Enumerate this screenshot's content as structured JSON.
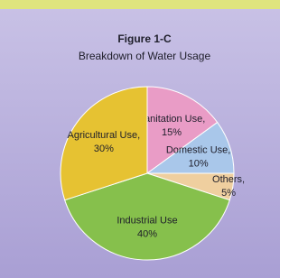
{
  "chart_data": {
    "type": "pie",
    "title": "Figure 1-C",
    "subtitle": "Breakdown of Water Usage",
    "categories": [
      "Sanitation Use,",
      "Domestic Use,",
      "Others,",
      "Industrial Use",
      "Agricultural Use,"
    ],
    "values": [
      15,
      10,
      5,
      40,
      30
    ],
    "value_labels": [
      "15%",
      "10%",
      "5%",
      "40%",
      "30%"
    ],
    "colors": [
      "#e99cc6",
      "#a9c7ea",
      "#efcf9f",
      "#86c04c",
      "#e6c232"
    ]
  }
}
